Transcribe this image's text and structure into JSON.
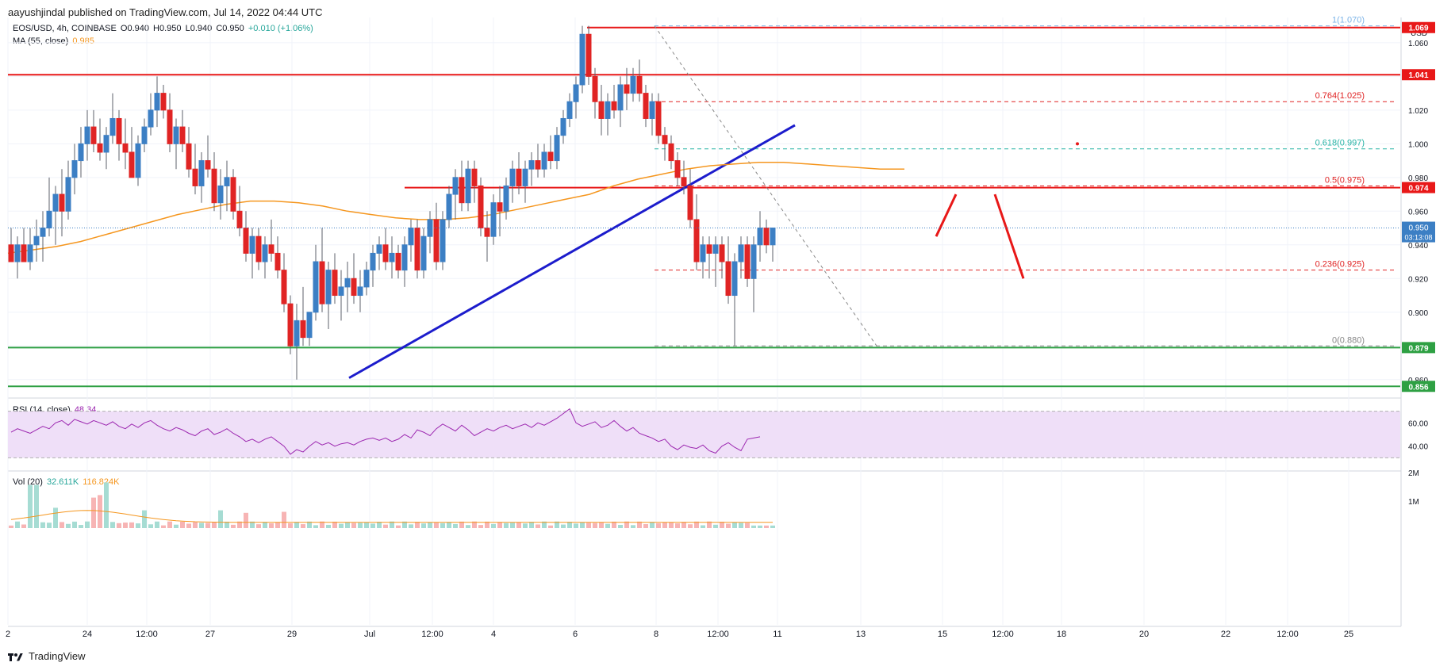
{
  "header": {
    "publisher": "aayushjindal published on TradingView.com, Jul 14, 2022 04:44 UTC"
  },
  "footer": {
    "brand": "TradingView"
  },
  "legend": {
    "symbol": "EOS/USD, 4h, COINBASE",
    "o": "O0.940",
    "h": "H0.950",
    "l": "L0.940",
    "c": "C0.950",
    "change": "+0.010 (+1.06%)",
    "ma_label": "MA (55, close)",
    "ma_value": "0.985",
    "rsi_label": "RSI (14, close)",
    "rsi_value": "48.34",
    "vol_label": "Vol (20)",
    "vol_value1": "32.611K",
    "vol_value2": "116.824K"
  },
  "colors": {
    "up": "#3c7fc4",
    "down": "#e02424",
    "ma": "#f5961e",
    "trend": "#1c1ccc",
    "resistance": "#e81818",
    "support": "#2ea043",
    "rsi_line": "#9c27b0",
    "rsi_band": "#efdff8",
    "fib_teal": "#26b3a5"
  },
  "currency": "USD",
  "price_axis": [
    "1.060",
    "1.040",
    "1.020",
    "1.000",
    "0.980",
    "0.960",
    "0.940",
    "0.920",
    "0.900",
    "0.880",
    "0.860"
  ],
  "rsi_axis": [
    "60.00",
    "40.00"
  ],
  "vol_axis": [
    "2M",
    "1M"
  ],
  "time_axis": [
    "2",
    "24",
    "12:00",
    "27",
    "29",
    "Jul",
    "12:00",
    "4",
    "6",
    "8",
    "12:00",
    "11",
    "13",
    "15",
    "12:00",
    "18",
    "20",
    "22",
    "12:00",
    "25"
  ],
  "price_labels": {
    "r1069": "1.069",
    "r1041": "1.041",
    "r974": "0.974",
    "last": "0.950",
    "countdown": "03:13:08",
    "s879": "0.879",
    "s856": "0.856"
  },
  "fib_labels": {
    "f1": "1(1.070)",
    "f0764": "0.764(1.025)",
    "f0618": "0.618(0.997)",
    "f05": "0.5(0.975)",
    "f0236": "0.236(0.925)",
    "f0": "0(0.880)"
  },
  "chart_data": {
    "type": "candlestick",
    "symbol": "EOS/USD",
    "timeframe": "4h",
    "exchange": "COINBASE",
    "ylim": [
      0.85,
      1.075
    ],
    "y_unit": "USD",
    "last_price": 0.95,
    "indicators": {
      "ma55_last": 0.985,
      "rsi14_last": 48.34,
      "rsi_range": [
        30,
        70
      ]
    },
    "levels": {
      "resistance": [
        1.069,
        1.041,
        0.974
      ],
      "support": [
        0.879,
        0.856
      ]
    },
    "fibonacci": [
      {
        "ratio": "1",
        "price": 1.07
      },
      {
        "ratio": "0.764",
        "price": 1.025
      },
      {
        "ratio": "0.618",
        "price": 0.997
      },
      {
        "ratio": "0.5",
        "price": 0.975
      },
      {
        "ratio": "0.236",
        "price": 0.925
      },
      {
        "ratio": "0",
        "price": 0.88
      }
    ],
    "candles": [
      [
        0.94,
        0.95,
        0.93,
        0.93
      ],
      [
        0.93,
        0.945,
        0.92,
        0.94
      ],
      [
        0.94,
        0.95,
        0.93,
        0.93
      ],
      [
        0.93,
        0.95,
        0.925,
        0.94
      ],
      [
        0.94,
        0.955,
        0.93,
        0.945
      ],
      [
        0.945,
        0.96,
        0.93,
        0.95
      ],
      [
        0.95,
        0.98,
        0.945,
        0.96
      ],
      [
        0.96,
        0.975,
        0.94,
        0.97
      ],
      [
        0.97,
        0.985,
        0.945,
        0.96
      ],
      [
        0.96,
        0.99,
        0.955,
        0.98
      ],
      [
        0.98,
        1.0,
        0.97,
        0.99
      ],
      [
        0.99,
        1.01,
        0.98,
        1.0
      ],
      [
        1.0,
        1.02,
        0.99,
        1.01
      ],
      [
        1.01,
        1.02,
        0.995,
        1.0
      ],
      [
        1.0,
        1.015,
        0.99,
        0.995
      ],
      [
        0.995,
        1.01,
        0.985,
        1.005
      ],
      [
        1.005,
        1.03,
        1.0,
        1.015
      ],
      [
        1.015,
        1.02,
        0.99,
        1.0
      ],
      [
        1.0,
        1.015,
        0.985,
        0.995
      ],
      [
        0.995,
        1.01,
        0.98,
        0.98
      ],
      [
        0.98,
        1.005,
        0.975,
        1.0
      ],
      [
        1.0,
        1.015,
        0.995,
        1.01
      ],
      [
        1.01,
        1.03,
        1.005,
        1.02
      ],
      [
        1.02,
        1.04,
        1.01,
        1.03
      ],
      [
        1.03,
        1.035,
        1.015,
        1.02
      ],
      [
        1.02,
        1.03,
        0.995,
        1.0
      ],
      [
        1.0,
        1.015,
        0.985,
        1.01
      ],
      [
        1.01,
        1.02,
        0.995,
        1.0
      ],
      [
        1.0,
        1.01,
        0.98,
        0.985
      ],
      [
        0.985,
        1.0,
        0.97,
        0.975
      ],
      [
        0.975,
        0.995,
        0.965,
        0.99
      ],
      [
        0.99,
        1.005,
        0.98,
        0.985
      ],
      [
        0.985,
        0.995,
        0.96,
        0.965
      ],
      [
        0.965,
        0.985,
        0.955,
        0.975
      ],
      [
        0.975,
        0.99,
        0.96,
        0.98
      ],
      [
        0.98,
        0.985,
        0.955,
        0.96
      ],
      [
        0.96,
        0.975,
        0.945,
        0.95
      ],
      [
        0.95,
        0.96,
        0.93,
        0.935
      ],
      [
        0.935,
        0.95,
        0.92,
        0.945
      ],
      [
        0.945,
        0.95,
        0.925,
        0.93
      ],
      [
        0.93,
        0.945,
        0.92,
        0.94
      ],
      [
        0.94,
        0.955,
        0.93,
        0.935
      ],
      [
        0.935,
        0.945,
        0.92,
        0.925
      ],
      [
        0.925,
        0.935,
        0.9,
        0.905
      ],
      [
        0.905,
        0.91,
        0.875,
        0.88
      ],
      [
        0.88,
        0.905,
        0.86,
        0.895
      ],
      [
        0.895,
        0.915,
        0.88,
        0.885
      ],
      [
        0.885,
        0.9,
        0.88,
        0.9
      ],
      [
        0.9,
        0.94,
        0.895,
        0.93
      ],
      [
        0.93,
        0.95,
        0.9,
        0.905
      ],
      [
        0.905,
        0.93,
        0.89,
        0.925
      ],
      [
        0.925,
        0.935,
        0.905,
        0.91
      ],
      [
        0.91,
        0.925,
        0.895,
        0.915
      ],
      [
        0.915,
        0.93,
        0.9,
        0.92
      ],
      [
        0.92,
        0.935,
        0.905,
        0.91
      ],
      [
        0.91,
        0.925,
        0.9,
        0.915
      ],
      [
        0.915,
        0.93,
        0.91,
        0.925
      ],
      [
        0.925,
        0.94,
        0.915,
        0.935
      ],
      [
        0.935,
        0.945,
        0.925,
        0.94
      ],
      [
        0.94,
        0.95,
        0.925,
        0.93
      ],
      [
        0.93,
        0.945,
        0.92,
        0.935
      ],
      [
        0.935,
        0.94,
        0.92,
        0.925
      ],
      [
        0.925,
        0.945,
        0.915,
        0.94
      ],
      [
        0.94,
        0.955,
        0.93,
        0.95
      ],
      [
        0.95,
        0.955,
        0.92,
        0.925
      ],
      [
        0.925,
        0.95,
        0.92,
        0.945
      ],
      [
        0.945,
        0.96,
        0.935,
        0.955
      ],
      [
        0.955,
        0.965,
        0.925,
        0.93
      ],
      [
        0.93,
        0.96,
        0.925,
        0.955
      ],
      [
        0.955,
        0.975,
        0.95,
        0.97
      ],
      [
        0.97,
        0.985,
        0.955,
        0.98
      ],
      [
        0.98,
        0.99,
        0.96,
        0.965
      ],
      [
        0.965,
        0.99,
        0.96,
        0.985
      ],
      [
        0.985,
        0.99,
        0.965,
        0.975
      ],
      [
        0.975,
        0.98,
        0.945,
        0.95
      ],
      [
        0.95,
        0.96,
        0.93,
        0.945
      ],
      [
        0.945,
        0.97,
        0.94,
        0.965
      ],
      [
        0.965,
        0.975,
        0.945,
        0.96
      ],
      [
        0.96,
        0.98,
        0.955,
        0.975
      ],
      [
        0.975,
        0.99,
        0.965,
        0.985
      ],
      [
        0.985,
        0.995,
        0.97,
        0.975
      ],
      [
        0.975,
        0.99,
        0.965,
        0.985
      ],
      [
        0.985,
        0.995,
        0.975,
        0.99
      ],
      [
        0.99,
        1.0,
        0.98,
        0.985
      ],
      [
        0.985,
        1.0,
        0.98,
        0.995
      ],
      [
        0.995,
        1.005,
        0.985,
        0.99
      ],
      [
        0.99,
        1.01,
        0.985,
        1.005
      ],
      [
        1.005,
        1.02,
        1.0,
        1.015
      ],
      [
        1.015,
        1.03,
        1.01,
        1.025
      ],
      [
        1.025,
        1.04,
        1.015,
        1.035
      ],
      [
        1.035,
        1.07,
        1.03,
        1.065
      ],
      [
        1.065,
        1.07,
        1.035,
        1.04
      ],
      [
        1.04,
        1.045,
        1.015,
        1.025
      ],
      [
        1.025,
        1.035,
        1.005,
        1.015
      ],
      [
        1.015,
        1.03,
        1.005,
        1.025
      ],
      [
        1.025,
        1.035,
        1.015,
        1.02
      ],
      [
        1.02,
        1.04,
        1.01,
        1.035
      ],
      [
        1.035,
        1.045,
        1.02,
        1.03
      ],
      [
        1.03,
        1.045,
        1.025,
        1.04
      ],
      [
        1.04,
        1.05,
        1.025,
        1.03
      ],
      [
        1.03,
        1.035,
        1.01,
        1.015
      ],
      [
        1.015,
        1.03,
        1.005,
        1.025
      ],
      [
        1.025,
        1.03,
        1.0,
        1.005
      ],
      [
        1.005,
        1.01,
        0.99,
        1.0
      ],
      [
        1.0,
        1.005,
        0.985,
        0.99
      ],
      [
        0.99,
        0.995,
        0.975,
        0.98
      ],
      [
        0.98,
        0.99,
        0.97,
        0.975
      ],
      [
        0.975,
        0.985,
        0.95,
        0.955
      ],
      [
        0.955,
        0.97,
        0.925,
        0.93
      ],
      [
        0.93,
        0.945,
        0.92,
        0.94
      ],
      [
        0.94,
        0.945,
        0.92,
        0.935
      ],
      [
        0.935,
        0.945,
        0.915,
        0.94
      ],
      [
        0.94,
        0.945,
        0.92,
        0.93
      ],
      [
        0.93,
        0.945,
        0.905,
        0.91
      ],
      [
        0.91,
        0.935,
        0.88,
        0.93
      ],
      [
        0.93,
        0.945,
        0.92,
        0.94
      ],
      [
        0.94,
        0.945,
        0.915,
        0.92
      ],
      [
        0.92,
        0.945,
        0.9,
        0.94
      ],
      [
        0.94,
        0.96,
        0.93,
        0.95
      ],
      [
        0.95,
        0.955,
        0.935,
        0.94
      ],
      [
        0.94,
        0.95,
        0.93,
        0.95
      ]
    ],
    "rsi14": [
      52,
      55,
      53,
      51,
      54,
      57,
      55,
      60,
      62,
      58,
      63,
      61,
      59,
      62,
      60,
      58,
      61,
      57,
      55,
      59,
      56,
      60,
      62,
      58,
      55,
      53,
      56,
      54,
      51,
      49,
      53,
      55,
      50,
      52,
      55,
      51,
      48,
      44,
      46,
      43,
      46,
      48,
      44,
      40,
      33,
      37,
      35,
      40,
      44,
      41,
      43,
      40,
      42,
      43,
      41,
      44,
      46,
      47,
      45,
      47,
      44,
      46,
      50,
      47,
      54,
      52,
      49,
      55,
      59,
      56,
      53,
      58,
      54,
      49,
      52,
      55,
      53,
      56,
      58,
      55,
      57,
      59,
      56,
      60,
      58,
      61,
      64,
      68,
      72,
      60,
      57,
      59,
      61,
      56,
      58,
      62,
      57,
      53,
      56,
      51,
      49,
      47,
      44,
      46,
      40,
      37,
      41,
      39,
      38,
      41,
      36,
      34,
      40,
      43,
      39,
      36,
      46,
      47,
      48
    ],
    "ma55": [
      0.935,
      0.937,
      0.939,
      0.942,
      0.946,
      0.95,
      0.954,
      0.958,
      0.961,
      0.964,
      0.966,
      0.966,
      0.965,
      0.963,
      0.96,
      0.958,
      0.956,
      0.955,
      0.955,
      0.956,
      0.958,
      0.961,
      0.964,
      0.967,
      0.97,
      0.975,
      0.979,
      0.982,
      0.985,
      0.987,
      0.988,
      0.989,
      0.989,
      0.988,
      0.987,
      0.986,
      0.985,
      0.985
    ],
    "volume_bars": 117
  }
}
